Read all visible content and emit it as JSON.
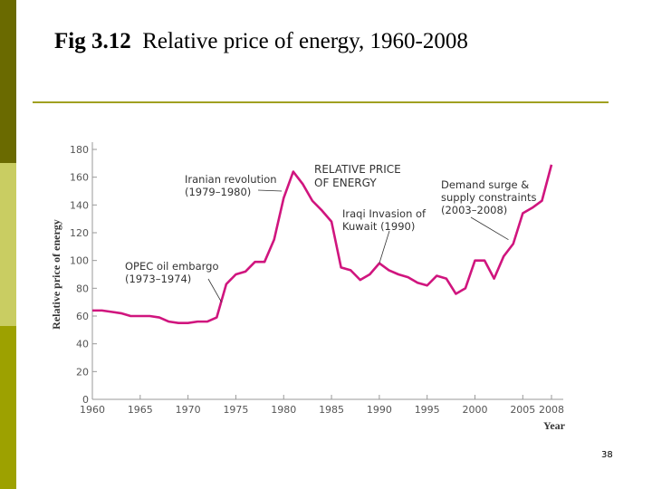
{
  "slide": {
    "title_fig": "Fig 3.12",
    "title_text": "Relative price of energy, 1960-2008",
    "page_number": "38"
  },
  "colors": {
    "line": "#d0157e",
    "stripe_top": "#6a6a00",
    "stripe_mid": "#c9cd62",
    "stripe_bottom": "#9da100",
    "rule": "#a0a020"
  },
  "chart_data": {
    "type": "line",
    "title": "",
    "xlabel": "Year",
    "ylabel": "Relative price of energy",
    "xlim": [
      1960,
      2008
    ],
    "ylim": [
      0,
      180
    ],
    "xticks": [
      1960,
      1965,
      1970,
      1975,
      1980,
      1985,
      1990,
      1995,
      2000,
      2005,
      2008
    ],
    "yticks": [
      0,
      20,
      40,
      60,
      80,
      100,
      120,
      140,
      160,
      180
    ],
    "grid": false,
    "series": [
      {
        "name": "RELATIVE PRICE OF ENERGY",
        "x": [
          1960,
          1961,
          1962,
          1963,
          1964,
          1965,
          1966,
          1967,
          1968,
          1969,
          1970,
          1971,
          1972,
          1973,
          1974,
          1975,
          1976,
          1977,
          1978,
          1979,
          1980,
          1981,
          1982,
          1983,
          1984,
          1985,
          1986,
          1987,
          1988,
          1989,
          1990,
          1991,
          1992,
          1993,
          1994,
          1995,
          1996,
          1997,
          1998,
          1999,
          2000,
          2001,
          2002,
          2003,
          2004,
          2005,
          2006,
          2007,
          2008
        ],
        "y": [
          64,
          64,
          63,
          62,
          60,
          60,
          60,
          59,
          56,
          55,
          55,
          56,
          56,
          59,
          83,
          90,
          92,
          99,
          99,
          115,
          145,
          164,
          155,
          143,
          136,
          128,
          95,
          93,
          86,
          90,
          98,
          93,
          90,
          88,
          84,
          82,
          89,
          87,
          76,
          80,
          100,
          100,
          87,
          103,
          112,
          134,
          138,
          143,
          169
        ]
      }
    ],
    "annotations": [
      {
        "label": [
          "OPEC oil embargo",
          "(1973–1974)"
        ],
        "x": 1973.5,
        "y": 70
      },
      {
        "label": [
          "Iranian revolution",
          "(1979–1980)"
        ],
        "x": 1979.8,
        "y": 150
      },
      {
        "label": [
          "Iraqi Invasion of",
          "Kuwait (1990)"
        ],
        "x": 1990,
        "y": 98
      },
      {
        "label": [
          "Demand surge &",
          "supply constraints",
          "(2003–2008)"
        ],
        "x": 2003.5,
        "y": 115
      }
    ]
  }
}
